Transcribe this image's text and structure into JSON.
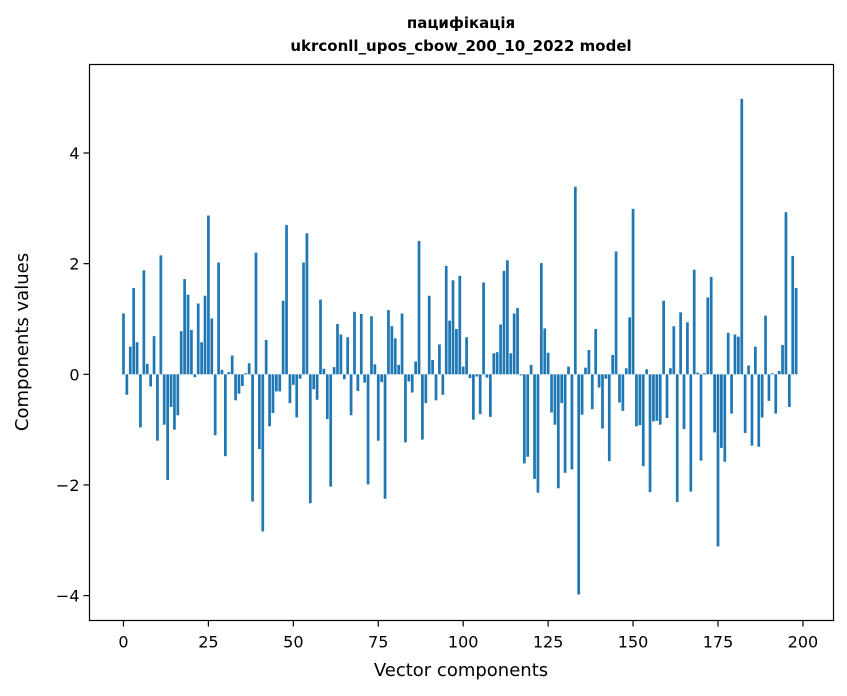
{
  "chart_data": {
    "type": "bar",
    "title": "пацифікація",
    "subtitle": "ukrconll_upos_cbow_200_10_2022 model",
    "xlabel": "Vector components",
    "ylabel": "Components values",
    "xlim": [
      -10,
      209
    ],
    "ylim": [
      -4.45,
      5.6
    ],
    "x_ticks": [
      0,
      25,
      50,
      75,
      100,
      125,
      150,
      175,
      200
    ],
    "y_ticks": [
      -4,
      -2,
      0,
      2,
      4
    ],
    "x_tick_labels": [
      "0",
      "25",
      "50",
      "75",
      "100",
      "125",
      "150",
      "175",
      "200"
    ],
    "y_tick_labels": [
      "−4",
      "−2",
      "0",
      "2",
      "4"
    ],
    "bar_color": "#1f77b4",
    "grid": false,
    "legend": "none",
    "values": [
      1.1,
      -0.37,
      0.5,
      1.56,
      0.58,
      -0.96,
      1.88,
      0.19,
      -0.22,
      0.69,
      -1.2,
      2.15,
      -0.91,
      -1.91,
      -0.59,
      -1.0,
      -0.74,
      0.78,
      1.72,
      1.44,
      0.8,
      -0.05,
      1.28,
      0.58,
      1.42,
      2.87,
      1.01,
      -1.1,
      2.02,
      0.08,
      -1.48,
      0.04,
      0.34,
      -0.47,
      -0.35,
      -0.21,
      0.02,
      0.2,
      -2.3,
      2.2,
      -1.35,
      -2.84,
      0.62,
      -0.94,
      -0.7,
      -0.31,
      -0.31,
      1.33,
      2.7,
      -0.52,
      -0.19,
      -0.78,
      -0.08,
      2.02,
      2.55,
      -2.33,
      -0.27,
      -0.46,
      1.35,
      0.1,
      -0.81,
      -2.03,
      0.13,
      0.91,
      0.72,
      -0.09,
      0.67,
      -0.74,
      1.13,
      -0.3,
      1.09,
      -0.15,
      -1.99,
      1.05,
      0.18,
      -1.2,
      -0.14,
      -2.25,
      1.16,
      0.87,
      0.65,
      0.17,
      1.1,
      -1.23,
      -0.13,
      -0.33,
      0.23,
      2.41,
      -1.18,
      -0.52,
      1.42,
      0.26,
      -0.47,
      0.54,
      -0.37,
      1.96,
      0.97,
      1.7,
      0.82,
      1.78,
      0.14,
      0.67,
      -0.07,
      -0.82,
      -0.04,
      -0.72,
      1.66,
      -0.06,
      -0.77,
      0.38,
      0.4,
      0.9,
      1.87,
      2.06,
      0.38,
      1.1,
      1.2,
      -0.02,
      -1.61,
      -1.49,
      0.17,
      -1.89,
      -2.14,
      2.01,
      0.83,
      0.39,
      -0.69,
      -0.91,
      -2.06,
      -0.52,
      -1.78,
      0.14,
      -1.72,
      3.39,
      -3.98,
      -0.73,
      0.12,
      0.44,
      -0.63,
      0.82,
      -0.24,
      -0.98,
      -0.08,
      -1.57,
      0.35,
      2.22,
      -0.51,
      -0.66,
      0.11,
      1.03,
      2.99,
      -0.94,
      -0.92,
      -1.66,
      0.09,
      -2.13,
      -0.85,
      -0.84,
      -0.91,
      1.33,
      -0.79,
      0.11,
      0.87,
      -2.31,
      1.12,
      -0.99,
      0.94,
      -2.12,
      1.89,
      0.03,
      -1.56,
      0.02,
      1.39,
      1.76,
      -1.05,
      -3.11,
      -1.33,
      -1.58,
      0.75,
      -0.71,
      0.72,
      0.68,
      4.98,
      -1.06,
      0.16,
      -1.29,
      0.5,
      -1.31,
      -0.78,
      1.06,
      -0.48,
      0.02,
      -0.71,
      0.06,
      0.53,
      2.93,
      -0.59,
      2.14,
      1.56
    ]
  }
}
